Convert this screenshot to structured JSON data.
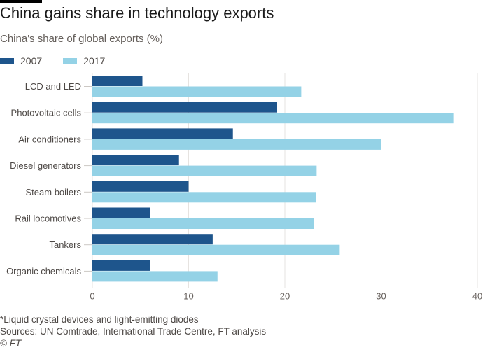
{
  "header": {
    "title": "China gains share in technology exports",
    "subtitle": "China's share of global exports (%)"
  },
  "legend": [
    {
      "label": "2007",
      "color": "#1e558c"
    },
    {
      "label": "2017",
      "color": "#94d2e6"
    }
  ],
  "footer": {
    "note": "*Liquid crystal devices and light-emitting diodes",
    "sources": "Sources: UN Comtrade, International Trade Centre, FT analysis",
    "copyright": "© FT"
  },
  "chart_data": {
    "type": "bar",
    "orientation": "horizontal",
    "title": "China gains share in technology exports",
    "subtitle": "China's share of global exports (%)",
    "xlabel": "",
    "ylabel": "",
    "categories": [
      "LCD and LED",
      "Photovoltaic cells",
      "Air conditioners",
      "Diesel generators",
      "Steam boilers",
      "Rail locomotives",
      "Tankers",
      "Organic chemicals"
    ],
    "series": [
      {
        "name": "2007",
        "color": "#1e558c",
        "values": [
          5.2,
          19.2,
          14.6,
          9.0,
          10.0,
          6.0,
          12.5,
          6.0
        ]
      },
      {
        "name": "2017",
        "color": "#94d2e6",
        "values": [
          21.7,
          37.5,
          30.0,
          23.3,
          23.2,
          23.0,
          25.7,
          13.0
        ]
      }
    ],
    "xlim": [
      0,
      40
    ],
    "xticks": [
      0,
      10,
      20,
      30,
      40
    ],
    "grid": true,
    "legend_position": "top-left"
  }
}
